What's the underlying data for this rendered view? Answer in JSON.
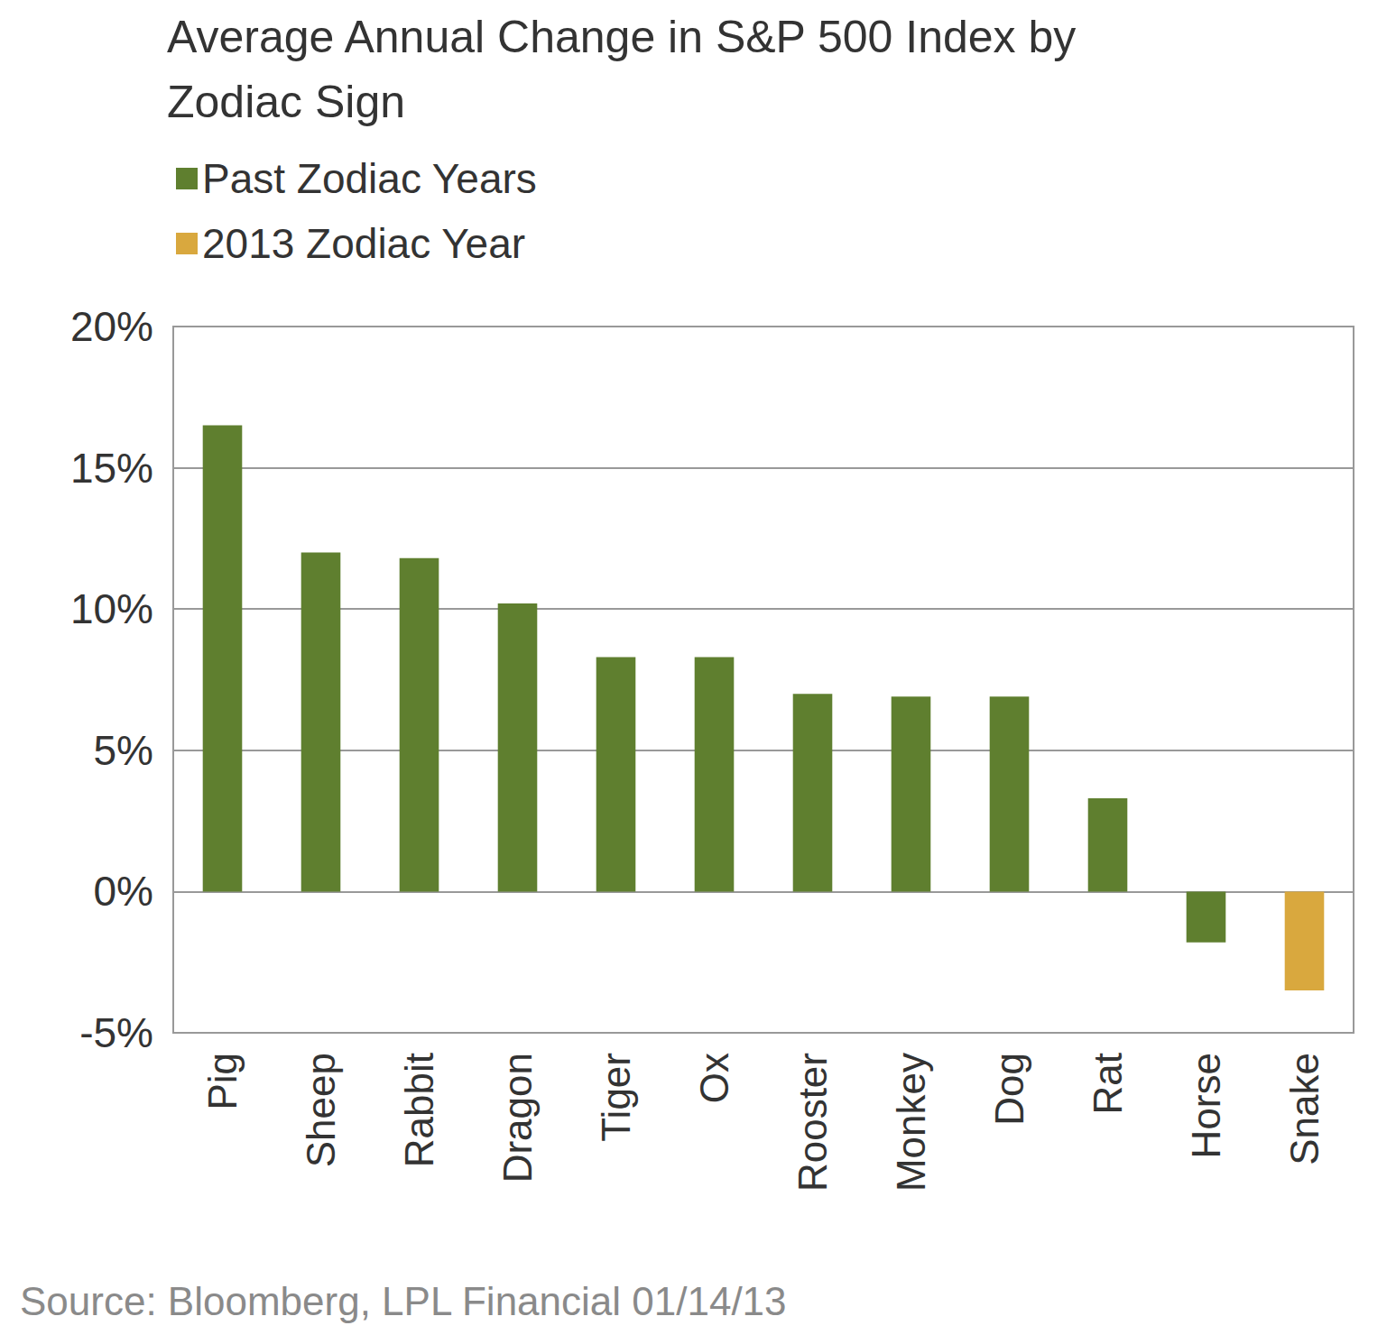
{
  "chart_data": {
    "type": "bar",
    "title": "Average Annual Change in S&P 500 Index by Zodiac Sign",
    "categories": [
      "Pig",
      "Sheep",
      "Rabbit",
      "Dragon",
      "Tiger",
      "Ox",
      "Rooster",
      "Monkey",
      "Dog",
      "Rat",
      "Horse",
      "Snake"
    ],
    "series": [
      {
        "name": "Past Zodiac Years",
        "color": "#5f7f2f",
        "values": [
          16.5,
          12.0,
          11.8,
          10.2,
          8.3,
          8.3,
          7.0,
          6.9,
          6.9,
          3.3,
          -1.8,
          null
        ]
      },
      {
        "name": "2013 Zodiac Year",
        "color": "#d9a83e",
        "values": [
          null,
          null,
          null,
          null,
          null,
          null,
          null,
          null,
          null,
          null,
          null,
          -3.5
        ]
      }
    ],
    "ylim": [
      -5,
      20
    ],
    "yticks": [
      {
        "value": -5,
        "label": "-5%"
      },
      {
        "value": 0,
        "label": "0%"
      },
      {
        "value": 5,
        "label": "5%"
      },
      {
        "value": 10,
        "label": "10%"
      },
      {
        "value": 15,
        "label": "15%"
      },
      {
        "value": 20,
        "label": "20%"
      }
    ],
    "grid": true,
    "legend": "top-left",
    "source": "Source: Bloomberg, LPL Financial 01/14/13"
  }
}
